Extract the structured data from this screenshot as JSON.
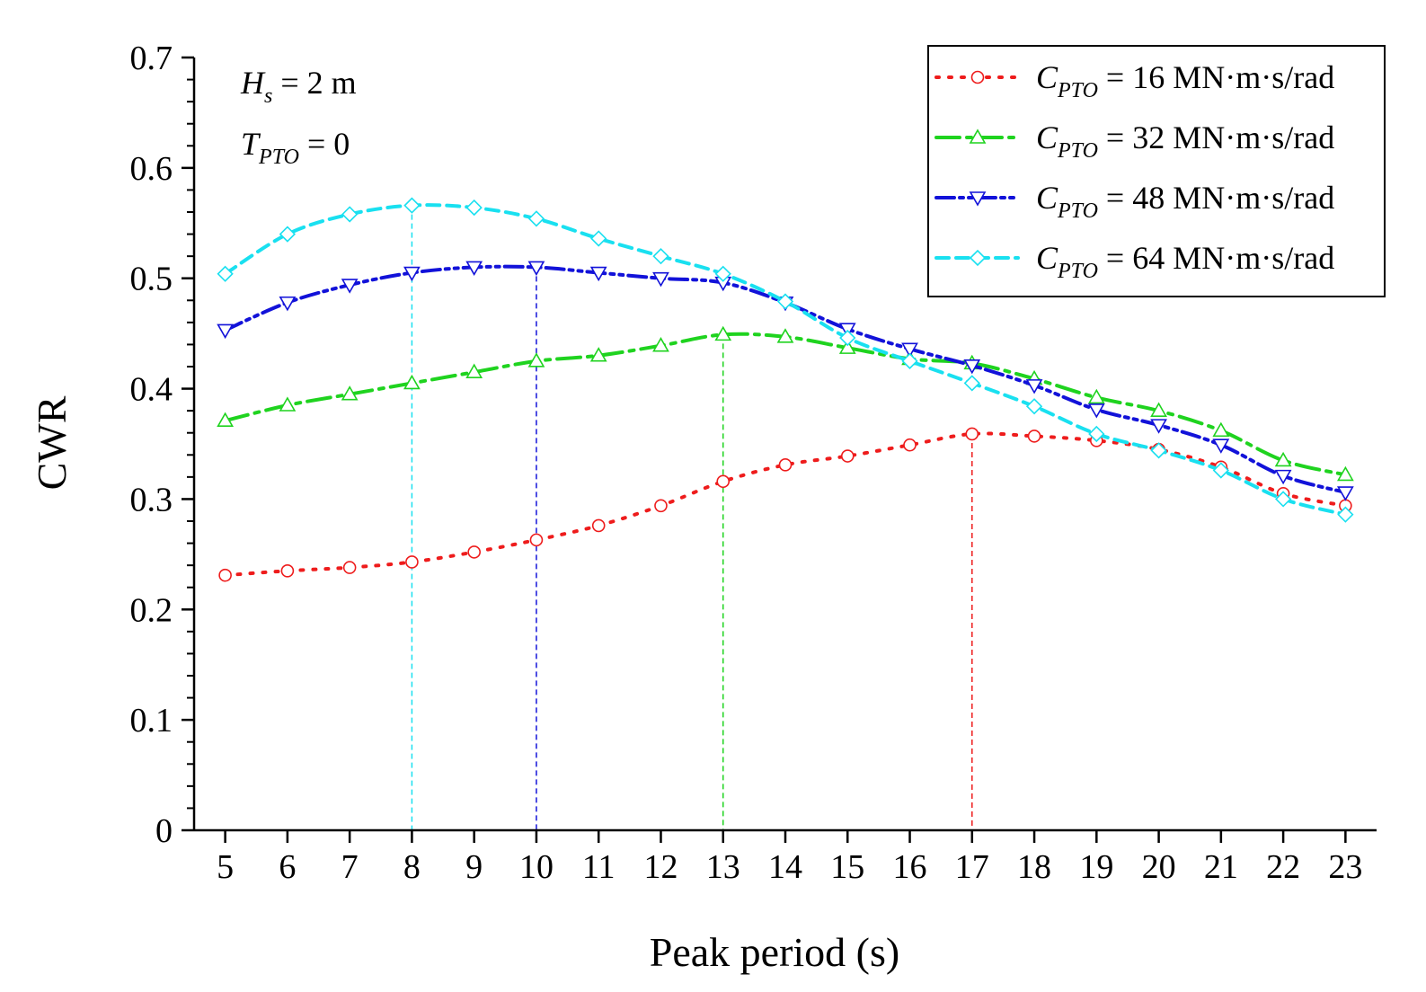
{
  "chart_data": {
    "type": "line",
    "title": "",
    "xlabel": "Peak period (s)",
    "ylabel": "CWR",
    "xlim": [
      4.5,
      23.5
    ],
    "ylim": [
      0,
      0.7
    ],
    "x_ticks": [
      5,
      6,
      7,
      8,
      9,
      10,
      11,
      12,
      13,
      14,
      15,
      16,
      17,
      18,
      19,
      20,
      21,
      22,
      23
    ],
    "y_ticks": [
      0,
      0.1,
      0.2,
      0.3,
      0.4,
      0.5,
      0.6,
      0.7
    ],
    "y_tick_labels": [
      "0",
      "0.1",
      "0.2",
      "0.3",
      "0.4",
      "0.5",
      "0.6",
      "0.7"
    ],
    "grid": false,
    "legend_position": "top-right",
    "annotations": {
      "hs": {
        "symbol": "H",
        "sub": "s",
        "rest": " = 2 m"
      },
      "tpto": {
        "symbol": "T",
        "sub": "PTO",
        "rest": " = 0"
      }
    },
    "x": [
      5,
      6,
      7,
      8,
      9,
      10,
      11,
      12,
      13,
      14,
      15,
      16,
      17,
      18,
      19,
      20,
      21,
      22,
      23
    ],
    "series": [
      {
        "name": "C_PTO = 16 MN·m·s/rad",
        "label_symbol": "C",
        "label_sub": "PTO",
        "label_rest": " = 16 MN·m·s/rad",
        "color": "#ee1c1c",
        "marker": "circle",
        "dash": "3,11",
        "values": [
          0.231,
          0.235,
          0.238,
          0.243,
          0.252,
          0.263,
          0.276,
          0.294,
          0.316,
          0.331,
          0.339,
          0.349,
          0.359,
          0.357,
          0.353,
          0.345,
          0.329,
          0.305,
          0.294
        ],
        "peak_x": 17
      },
      {
        "name": "C_PTO = 32 MN·m·s/rad",
        "label_symbol": "C",
        "label_sub": "PTO",
        "label_rest": " = 32 MN·m·s/rad",
        "color": "#1fd31f",
        "marker": "triangle-up",
        "dash": "26,8,5,8",
        "values": [
          0.371,
          0.385,
          0.395,
          0.405,
          0.415,
          0.425,
          0.43,
          0.439,
          0.449,
          0.447,
          0.437,
          0.427,
          0.423,
          0.409,
          0.392,
          0.38,
          0.362,
          0.335,
          0.322
        ],
        "peak_x": 13
      },
      {
        "name": "C_PTO = 48 MN·m·s/rad",
        "label_symbol": "C",
        "label_sub": "PTO",
        "label_rest": " = 48 MN·m·s/rad",
        "color": "#1212d9",
        "marker": "triangle-down",
        "dash": "20,6,4,6,4,6",
        "values": [
          0.453,
          0.478,
          0.494,
          0.505,
          0.51,
          0.51,
          0.505,
          0.5,
          0.496,
          0.478,
          0.454,
          0.436,
          0.421,
          0.403,
          0.381,
          0.367,
          0.349,
          0.321,
          0.306
        ],
        "peak_x": 10
      },
      {
        "name": "C_PTO = 64 MN·m·s/rad",
        "label_symbol": "C",
        "label_sub": "PTO",
        "label_rest": " = 64 MN·m·s/rad",
        "color": "#19e0f0",
        "marker": "diamond",
        "dash": "14,8",
        "values": [
          0.504,
          0.54,
          0.558,
          0.566,
          0.564,
          0.554,
          0.536,
          0.52,
          0.504,
          0.479,
          0.446,
          0.425,
          0.405,
          0.384,
          0.359,
          0.344,
          0.326,
          0.3,
          0.286
        ],
        "peak_x": 8
      }
    ]
  }
}
